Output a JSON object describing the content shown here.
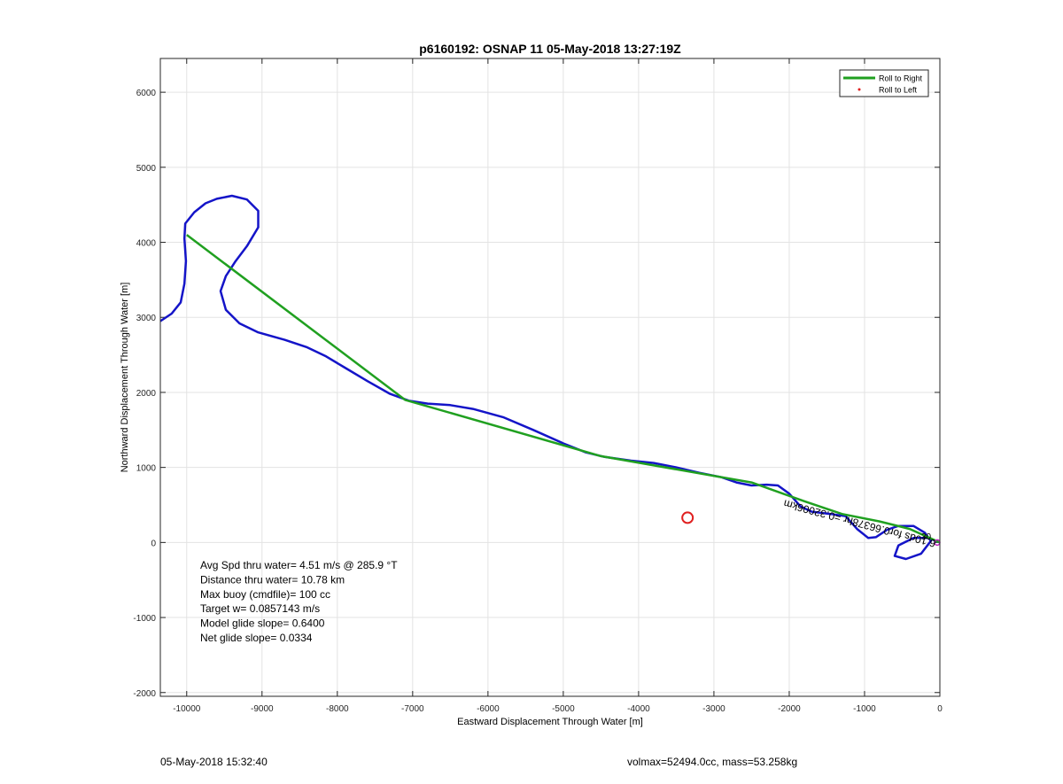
{
  "chart_data": {
    "type": "line",
    "title": "p6160192: OSNAP 11 05-May-2018 13:27:19Z",
    "xlabel": "Eastward Displacement Through Water [m]",
    "ylabel": "Northward Displacement Through Water [m]",
    "xlim": [
      -10350,
      0
    ],
    "ylim": [
      -2050,
      6450
    ],
    "xticks": [
      -10000,
      -9000,
      -8000,
      -7000,
      -6000,
      -5000,
      -4000,
      -3000,
      -2000,
      -1000,
      0
    ],
    "yticks": [
      -2000,
      -1000,
      0,
      1000,
      2000,
      3000,
      4000,
      5000,
      6000
    ],
    "grid": true,
    "legend": {
      "placement": "top-right",
      "entries": [
        {
          "label": "Roll to Right",
          "color": "#20a020",
          "style": "line"
        },
        {
          "label": "Roll to Left",
          "color": "#e02020",
          "style": "dot"
        }
      ]
    },
    "series": [
      {
        "name": "Roll to Right",
        "color": "#20a020",
        "points": [
          [
            -10000,
            4100
          ],
          [
            -7100,
            1900
          ],
          [
            -4500,
            1150
          ],
          [
            -2500,
            800
          ],
          [
            -1800,
            550
          ],
          [
            -1300,
            380
          ],
          [
            -800,
            280
          ],
          [
            -400,
            180
          ],
          [
            0,
            0
          ]
        ]
      },
      {
        "color": "#1414c8",
        "points": [
          [
            -10350,
            2950
          ],
          [
            -10200,
            3050
          ],
          [
            -10080,
            3200
          ],
          [
            -10030,
            3450
          ],
          [
            -10010,
            3750
          ],
          [
            -10030,
            4050
          ],
          [
            -10020,
            4250
          ],
          [
            -9900,
            4400
          ],
          [
            -9750,
            4520
          ],
          [
            -9600,
            4580
          ],
          [
            -9400,
            4620
          ],
          [
            -9200,
            4570
          ],
          [
            -9050,
            4420
          ],
          [
            -9050,
            4200
          ],
          [
            -9200,
            3950
          ],
          [
            -9350,
            3750
          ],
          [
            -9480,
            3550
          ],
          [
            -9550,
            3350
          ],
          [
            -9480,
            3100
          ],
          [
            -9300,
            2920
          ],
          [
            -9050,
            2800
          ],
          [
            -8700,
            2700
          ],
          [
            -8400,
            2600
          ],
          [
            -8150,
            2480
          ],
          [
            -7900,
            2330
          ],
          [
            -7600,
            2150
          ],
          [
            -7300,
            1980
          ],
          [
            -7050,
            1890
          ],
          [
            -6800,
            1850
          ],
          [
            -6500,
            1830
          ],
          [
            -6200,
            1780
          ],
          [
            -5800,
            1670
          ],
          [
            -5400,
            1500
          ],
          [
            -5000,
            1320
          ],
          [
            -4700,
            1200
          ],
          [
            -4450,
            1140
          ],
          [
            -4100,
            1090
          ],
          [
            -3800,
            1060
          ],
          [
            -3500,
            1000
          ],
          [
            -3200,
            930
          ],
          [
            -2900,
            870
          ],
          [
            -2700,
            800
          ],
          [
            -2500,
            760
          ],
          [
            -2300,
            770
          ],
          [
            -2150,
            760
          ],
          [
            -2000,
            650
          ],
          [
            -1850,
            480
          ],
          [
            -1700,
            410
          ],
          [
            -1450,
            380
          ],
          [
            -1250,
            350
          ],
          [
            -1100,
            180
          ],
          [
            -950,
            60
          ],
          [
            -850,
            70
          ],
          [
            -700,
            170
          ],
          [
            -550,
            220
          ],
          [
            -350,
            220
          ],
          [
            -200,
            130
          ],
          [
            -120,
            20
          ],
          [
            -250,
            -150
          ],
          [
            -450,
            -220
          ],
          [
            -600,
            -180
          ],
          [
            -550,
            -40
          ],
          [
            -350,
            60
          ],
          [
            -150,
            60
          ],
          [
            0,
            0
          ]
        ]
      },
      {
        "name": "Roll to Left",
        "color": "#e02020",
        "points": [
          [
            -3350,
            330
          ]
        ]
      }
    ],
    "annotations": {
      "stats": [
        "Avg Spd thru water=  4.51 m/s @ 285.9 °T",
        "Distance thru water= 10.78 km",
        "Max buoy (cmdfile)= 100 cc",
        "Target w= 0.0857143 m/s",
        "Model glide slope= 0.6400",
        "Net glide slope= 0.0334"
      ],
      "rotated_label": "6.10ds for0.66378hr =0.32006km",
      "marker_label": "30"
    }
  },
  "footer": {
    "left": "05-May-2018 15:32:40",
    "right": "volmax=52494.0cc, mass=53.258kg"
  }
}
